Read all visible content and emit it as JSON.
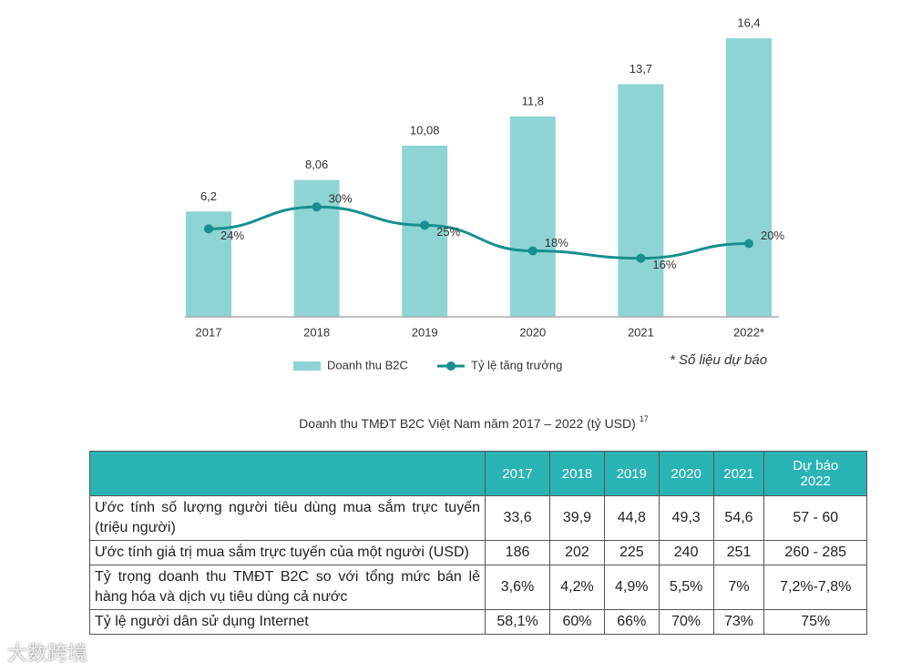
{
  "chart_data": {
    "type": "bar",
    "categories": [
      "2017",
      "2018",
      "2019",
      "2020",
      "2021",
      "2022*"
    ],
    "series": [
      {
        "name": "Doanh thu B2C",
        "type": "bar",
        "color": "#8fd4d4",
        "values": [
          6.2,
          8.06,
          10.08,
          11.8,
          13.7,
          16.4
        ],
        "value_labels": [
          "6,2",
          "8,06",
          "10,08",
          "11,8",
          "13,7",
          "16,4"
        ]
      },
      {
        "name": "Tỷ lệ tăng trưởng",
        "type": "line",
        "axis": "y2",
        "color": "#178f8e",
        "values": [
          24,
          30,
          25,
          18,
          16,
          20
        ],
        "value_labels": [
          "24%",
          "30%",
          "25%",
          "18%",
          "16%",
          "20%"
        ]
      }
    ],
    "ylim": [
      0,
      16.4
    ],
    "y2lim": [
      0,
      76
    ],
    "note": "* Số liệu dự báo"
  },
  "caption": {
    "text": "Doanh thu TMĐT B2C Việt Nam năm 2017 – 2022 (tỷ USD)",
    "superscript": "17"
  },
  "table": {
    "header": [
      "2017",
      "2018",
      "2019",
      "2020",
      "2021",
      "Dự báo\n2022"
    ],
    "rows": [
      [
        "Ước tính số lượng người tiêu dùng mua sắm trực tuyến (triệu người)",
        "33,6",
        "39,9",
        "44,8",
        "49,3",
        "54,6",
        "57 - 60"
      ],
      [
        "Ước tính giá trị mua sắm trực tuyến của một người (USD)",
        "186",
        "202",
        "225",
        "240",
        "251",
        "260 - 285"
      ],
      [
        "Tỷ trọng doanh thu TMĐT B2C so với tổng mức bán lẻ hàng hóa và dịch vụ tiêu dùng cả nước",
        "3,6%",
        "4,2%",
        "4,9%",
        "5,5%",
        "7%",
        "7,2%-7,8%"
      ],
      [
        "Tỷ lệ người dân sử dụng Internet",
        "58,1%",
        "60%",
        "66%",
        "70%",
        "73%",
        "75%"
      ]
    ]
  },
  "watermark": "大数跨境"
}
